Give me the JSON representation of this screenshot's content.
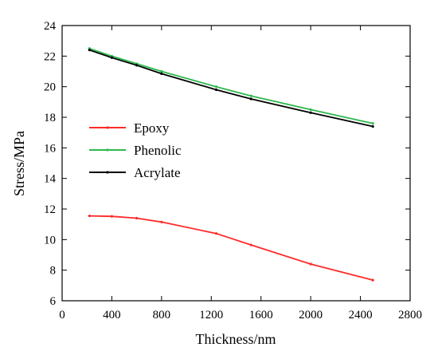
{
  "chart_data": {
    "type": "line",
    "xlabel": "Thickness/nm",
    "ylabel": "Stress/MPa",
    "xlim": [
      0,
      2800
    ],
    "ylim": [
      6,
      24
    ],
    "xticks": [
      0,
      400,
      800,
      1200,
      1600,
      2000,
      2400,
      2800
    ],
    "yticks": [
      6,
      8,
      10,
      12,
      14,
      16,
      18,
      20,
      22,
      24
    ],
    "grid": false,
    "legend_position": "middle-left",
    "series": [
      {
        "name": "Epoxy",
        "color": "#ff2a2a",
        "x": [
          220,
          400,
          600,
          800,
          1240,
          1520,
          2000,
          2500
        ],
        "y": [
          11.55,
          11.52,
          11.4,
          11.15,
          10.4,
          9.65,
          8.4,
          7.35
        ]
      },
      {
        "name": "Phenolic",
        "color": "#2db84d",
        "x": [
          220,
          400,
          600,
          800,
          1240,
          1520,
          2000,
          2500
        ],
        "y": [
          22.5,
          22.0,
          21.5,
          21.0,
          20.0,
          19.4,
          18.5,
          17.6
        ]
      },
      {
        "name": "Acrylate",
        "color": "#000000",
        "x": [
          220,
          400,
          600,
          800,
          1240,
          1520,
          2000,
          2500
        ],
        "y": [
          22.4,
          21.9,
          21.4,
          20.85,
          19.8,
          19.2,
          18.3,
          17.4
        ]
      }
    ]
  }
}
